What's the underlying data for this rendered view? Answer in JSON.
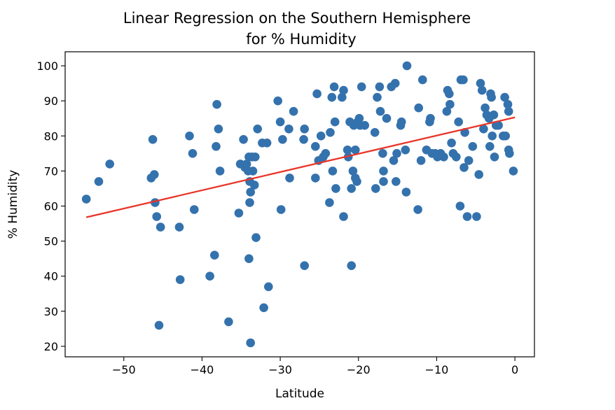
{
  "chart_data": {
    "type": "scatter",
    "title_line1": "Linear Regression on the Southern Hemisphere",
    "title_line2": "for % Humidity",
    "xlabel": "Latitude",
    "ylabel": "% Humidity",
    "xlim": [
      -57.5,
      2.5
    ],
    "ylim": [
      17,
      104
    ],
    "xticks": [
      -50,
      -40,
      -30,
      -20,
      -10,
      0
    ],
    "yticks": [
      20,
      30,
      40,
      50,
      60,
      70,
      80,
      90,
      100
    ],
    "xtick_labels": [
      "−50",
      "−40",
      "−30",
      "−20",
      "−10",
      "0"
    ],
    "ytick_labels": [
      "20",
      "30",
      "40",
      "50",
      "60",
      "70",
      "80",
      "90",
      "100"
    ],
    "point_color": "#3472ad",
    "line_color": "#e8352a",
    "grid": false,
    "regression_line": {
      "x": [
        -54.8,
        0.0
      ],
      "y": [
        56.8,
        85.3
      ]
    },
    "points": [
      [
        -54.8,
        62
      ],
      [
        -53.2,
        67
      ],
      [
        -51.8,
        72
      ],
      [
        -46.3,
        79
      ],
      [
        -46.1,
        69
      ],
      [
        -46.5,
        68
      ],
      [
        -46.0,
        61
      ],
      [
        -45.8,
        57
      ],
      [
        -45.3,
        54
      ],
      [
        -45.5,
        26
      ],
      [
        -42.9,
        54
      ],
      [
        -42.8,
        39
      ],
      [
        -41.6,
        80
      ],
      [
        -41.2,
        75
      ],
      [
        -41.0,
        59
      ],
      [
        -39.0,
        40
      ],
      [
        -38.4,
        46
      ],
      [
        -38.1,
        89
      ],
      [
        -37.9,
        82
      ],
      [
        -38.2,
        77
      ],
      [
        -37.7,
        70
      ],
      [
        -36.6,
        27
      ],
      [
        -35.3,
        58
      ],
      [
        -35.1,
        72
      ],
      [
        -34.7,
        79
      ],
      [
        -34.5,
        71
      ],
      [
        -34.3,
        72
      ],
      [
        -34.1,
        70
      ],
      [
        -34.0,
        74
      ],
      [
        -33.9,
        67
      ],
      [
        -33.8,
        64
      ],
      [
        -33.9,
        61
      ],
      [
        -34.0,
        45
      ],
      [
        -33.8,
        21
      ],
      [
        -33.6,
        74
      ],
      [
        -33.5,
        70
      ],
      [
        -33.3,
        66
      ],
      [
        -33.2,
        74
      ],
      [
        -33.1,
        51
      ],
      [
        -32.9,
        82
      ],
      [
        -32.3,
        78
      ],
      [
        -32.1,
        31
      ],
      [
        -31.7,
        78
      ],
      [
        -31.5,
        37
      ],
      [
        -30.3,
        90
      ],
      [
        -30.0,
        84
      ],
      [
        -29.9,
        59
      ],
      [
        -29.7,
        79
      ],
      [
        -28.9,
        82
      ],
      [
        -28.8,
        68
      ],
      [
        -28.3,
        87
      ],
      [
        -27.0,
        79
      ],
      [
        -26.9,
        82
      ],
      [
        -26.9,
        43
      ],
      [
        -25.5,
        68
      ],
      [
        -25.5,
        77
      ],
      [
        -25.3,
        92
      ],
      [
        -25.1,
        73
      ],
      [
        -24.8,
        80
      ],
      [
        -24.5,
        74
      ],
      [
        -24.2,
        75
      ],
      [
        -23.7,
        61
      ],
      [
        -23.6,
        81
      ],
      [
        -23.4,
        91
      ],
      [
        -23.3,
        70
      ],
      [
        -23.1,
        94
      ],
      [
        -23.0,
        84
      ],
      [
        -22.9,
        65
      ],
      [
        -22.1,
        91
      ],
      [
        -21.9,
        93
      ],
      [
        -21.9,
        57
      ],
      [
        -21.4,
        76
      ],
      [
        -21.3,
        74
      ],
      [
        -21.1,
        84
      ],
      [
        -20.9,
        65
      ],
      [
        -20.9,
        43
      ],
      [
        -20.7,
        70
      ],
      [
        -20.6,
        83
      ],
      [
        -20.4,
        76
      ],
      [
        -20.4,
        68
      ],
      [
        -20.2,
        67
      ],
      [
        -20.1,
        84
      ],
      [
        -19.9,
        85
      ],
      [
        -19.8,
        83
      ],
      [
        -19.6,
        94
      ],
      [
        -19.2,
        83
      ],
      [
        -17.9,
        81
      ],
      [
        -17.8,
        65
      ],
      [
        -17.6,
        91
      ],
      [
        -17.3,
        94
      ],
      [
        -17.2,
        87
      ],
      [
        -16.9,
        75
      ],
      [
        -16.8,
        70
      ],
      [
        -16.8,
        67
      ],
      [
        -16.4,
        85
      ],
      [
        -15.8,
        94
      ],
      [
        -15.5,
        73
      ],
      [
        -15.3,
        95
      ],
      [
        -15.2,
        67
      ],
      [
        -15.1,
        75
      ],
      [
        -14.6,
        83
      ],
      [
        -14.5,
        84
      ],
      [
        -14.0,
        76
      ],
      [
        -13.9,
        64
      ],
      [
        -13.8,
        100
      ],
      [
        -12.4,
        59
      ],
      [
        -12.3,
        88
      ],
      [
        -12.0,
        73
      ],
      [
        -11.8,
        96
      ],
      [
        -11.3,
        76
      ],
      [
        -10.9,
        84
      ],
      [
        -10.8,
        85
      ],
      [
        -10.6,
        75
      ],
      [
        -10.2,
        75
      ],
      [
        -9.9,
        74
      ],
      [
        -9.5,
        75
      ],
      [
        -9.1,
        74
      ],
      [
        -8.7,
        87
      ],
      [
        -8.6,
        93
      ],
      [
        -8.4,
        92
      ],
      [
        -8.3,
        89
      ],
      [
        -8.1,
        78
      ],
      [
        -7.9,
        75
      ],
      [
        -7.5,
        74
      ],
      [
        -7.2,
        84
      ],
      [
        -7.0,
        60
      ],
      [
        -6.9,
        96
      ],
      [
        -6.6,
        96
      ],
      [
        -6.5,
        71
      ],
      [
        -6.4,
        81
      ],
      [
        -6.1,
        57
      ],
      [
        -5.9,
        73
      ],
      [
        -5.4,
        77
      ],
      [
        -4.9,
        57
      ],
      [
        -4.6,
        69
      ],
      [
        -4.4,
        95
      ],
      [
        -4.2,
        93
      ],
      [
        -4.0,
        82
      ],
      [
        -3.8,
        88
      ],
      [
        -3.6,
        86
      ],
      [
        -3.3,
        85
      ],
      [
        -3.2,
        77
      ],
      [
        -3.1,
        92
      ],
      [
        -3.0,
        91
      ],
      [
        -2.9,
        80
      ],
      [
        -2.7,
        86
      ],
      [
        -2.6,
        74
      ],
      [
        -2.4,
        83
      ],
      [
        -2.1,
        83
      ],
      [
        -1.5,
        80
      ],
      [
        -1.3,
        91
      ],
      [
        -1.2,
        80
      ],
      [
        -0.9,
        89
      ],
      [
        -0.8,
        87
      ],
      [
        -0.8,
        76
      ],
      [
        -0.7,
        75
      ],
      [
        -0.2,
        70
      ]
    ]
  }
}
